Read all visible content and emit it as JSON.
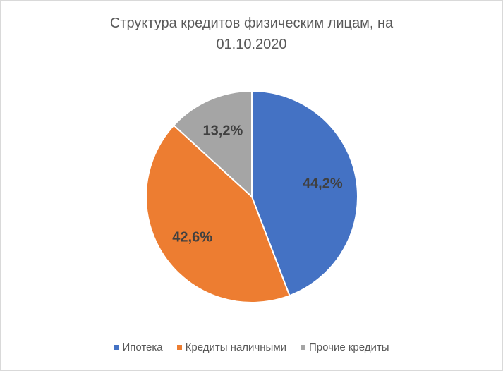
{
  "title": {
    "line1": "Структура кредитов физическим лицам, на",
    "line2": "01.10.2020"
  },
  "chart_data": {
    "type": "pie",
    "title": "Структура кредитов физическим лицам, на 01.10.2020",
    "unit": "%",
    "legend_position": "bottom",
    "start_angle_deg": 0,
    "direction": "clockwise",
    "slices": [
      {
        "name": "Ипотека",
        "value": 44.2,
        "label": "44,2%",
        "color": "#4472C4"
      },
      {
        "name": "Кредиты наличными",
        "value": 42.6,
        "label": "42,6%",
        "color": "#ED7D31"
      },
      {
        "name": "Прочие кредиты",
        "value": 13.2,
        "label": "13,2%",
        "color": "#A5A5A5"
      }
    ]
  }
}
